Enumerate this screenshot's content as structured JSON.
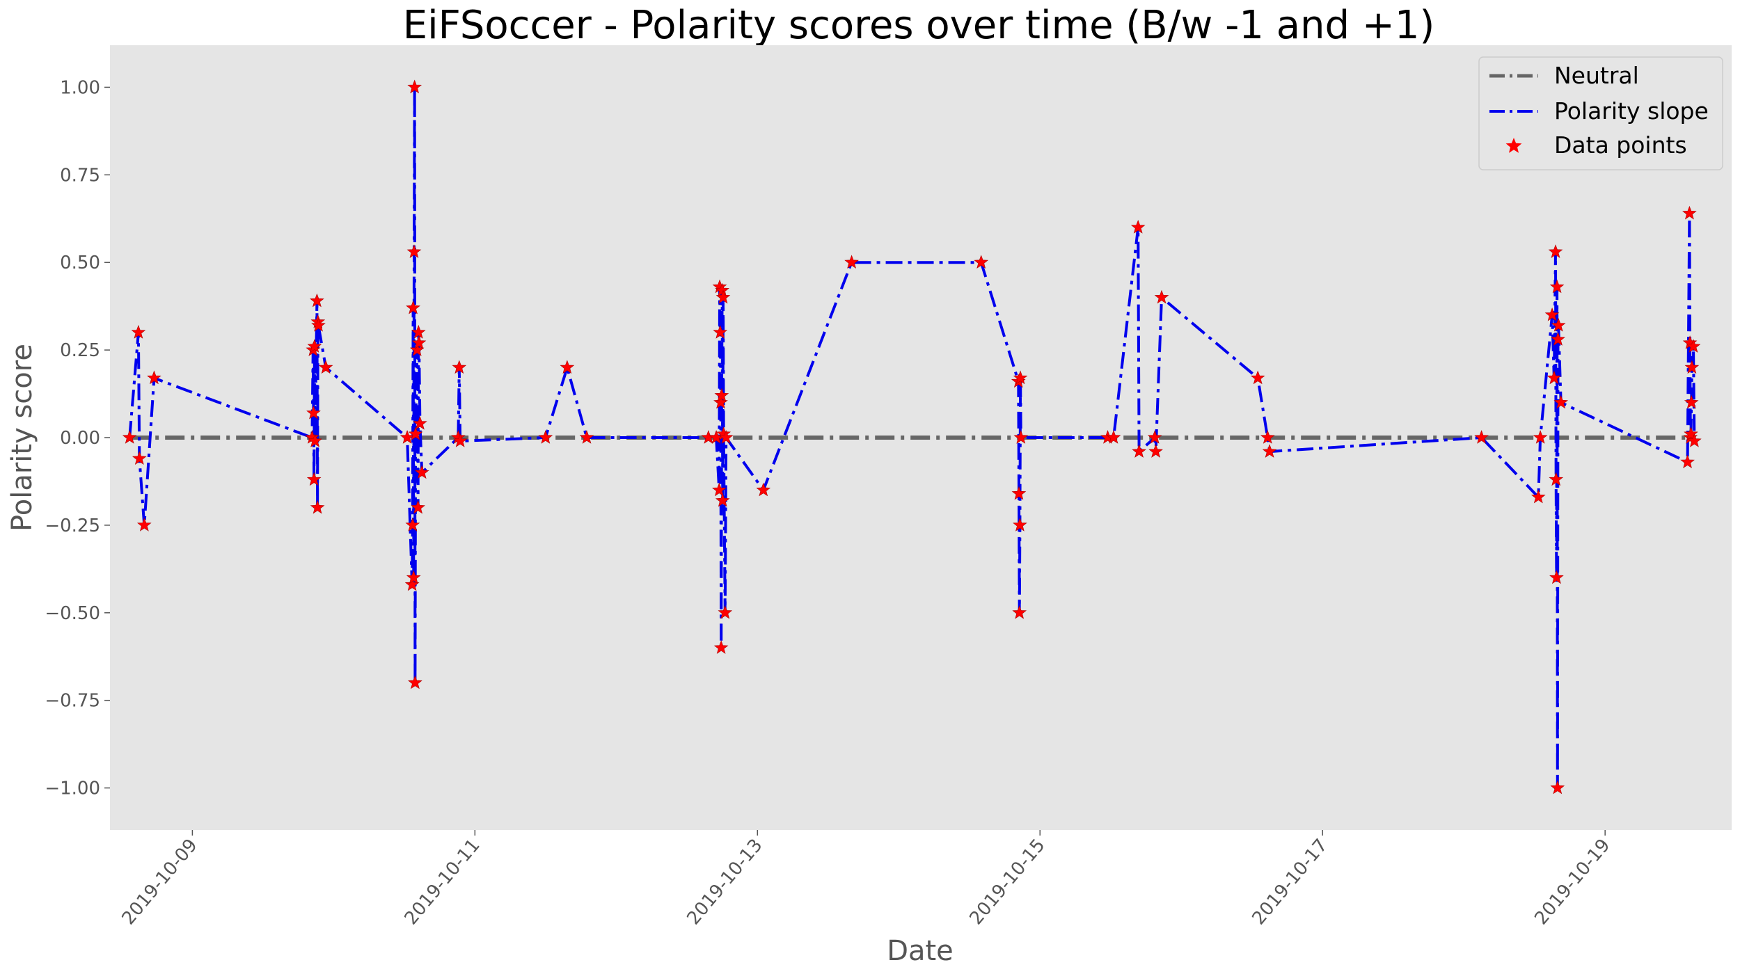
{
  "chart_data": {
    "type": "line",
    "title": "EiFSoccer - Polarity scores over time (B/w -1 and +1)",
    "xlabel": "Date",
    "ylabel": "Polarity score",
    "xlim": [
      "2019-10-08T10:00",
      "2019-10-19T21:30"
    ],
    "ylim": [
      -1.12,
      1.12
    ],
    "x_ticks": [
      "2019-10-09",
      "2019-10-11",
      "2019-10-13",
      "2019-10-15",
      "2019-10-17",
      "2019-10-19"
    ],
    "y_ticks": [
      "1.00",
      "0.75",
      "0.50",
      "0.25",
      "0.00",
      "−0.25",
      "−0.50",
      "−0.75",
      "−1.00"
    ],
    "grid": false,
    "legend_position": "top-right",
    "neutral_value": 0,
    "colors": {
      "background": "#e5e5e5",
      "neutral": "#666666",
      "series": "#0000ee",
      "markers": "#ff0000"
    },
    "series": [
      {
        "name": "Neutral",
        "style": "dash-dot",
        "color": "#666666"
      },
      {
        "name": "Polarity slope",
        "style": "dash-dot",
        "color": "#0000ee"
      },
      {
        "name": "Data points",
        "style": "star",
        "color": "#ff0000"
      }
    ],
    "points": [
      [
        "2019-10-08T13:20",
        0.0
      ],
      [
        "2019-10-08T14:50",
        0.3
      ],
      [
        "2019-10-08T15:00",
        -0.06
      ],
      [
        "2019-10-08T15:50",
        -0.25
      ],
      [
        "2019-10-08T17:30",
        0.17
      ],
      [
        "2019-10-09T20:20",
        0.0
      ],
      [
        "2019-10-09T20:30",
        0.25
      ],
      [
        "2019-10-09T20:35",
        0.07
      ],
      [
        "2019-10-09T20:40",
        -0.12
      ],
      [
        "2019-10-09T20:45",
        0.26
      ],
      [
        "2019-10-09T20:50",
        -0.01
      ],
      [
        "2019-10-09T21:10",
        0.39
      ],
      [
        "2019-10-09T21:15",
        -0.2
      ],
      [
        "2019-10-09T21:20",
        0.33
      ],
      [
        "2019-10-09T21:25",
        0.32
      ],
      [
        "2019-10-09T22:40",
        0.2
      ],
      [
        "2019-10-10T12:30",
        0.0
      ],
      [
        "2019-10-10T13:20",
        -0.42
      ],
      [
        "2019-10-10T13:25",
        -0.25
      ],
      [
        "2019-10-10T13:30",
        0.37
      ],
      [
        "2019-10-10T13:35",
        -0.4
      ],
      [
        "2019-10-10T13:40",
        0.53
      ],
      [
        "2019-10-10T13:45",
        1.0
      ],
      [
        "2019-10-10T13:50",
        -0.7
      ],
      [
        "2019-10-10T13:55",
        0.01
      ],
      [
        "2019-10-10T14:10",
        0.25
      ],
      [
        "2019-10-10T14:20",
        -0.2
      ],
      [
        "2019-10-10T14:25",
        0.3
      ],
      [
        "2019-10-10T14:30",
        0.27
      ],
      [
        "2019-10-10T14:40",
        0.04
      ],
      [
        "2019-10-10T15:00",
        -0.1
      ],
      [
        "2019-10-10T21:10",
        0.0
      ],
      [
        "2019-10-10T21:20",
        0.2
      ],
      [
        "2019-10-10T21:30",
        -0.01
      ],
      [
        "2019-10-11T12:00",
        0.0
      ],
      [
        "2019-10-11T15:40",
        0.2
      ],
      [
        "2019-10-11T19:00",
        0.0
      ],
      [
        "2019-10-12T15:40",
        0.0
      ],
      [
        "2019-10-12T17:00",
        0.0
      ],
      [
        "2019-10-12T17:30",
        -0.15
      ],
      [
        "2019-10-12T17:35",
        0.43
      ],
      [
        "2019-10-12T17:40",
        0.3
      ],
      [
        "2019-10-12T17:45",
        0.1
      ],
      [
        "2019-10-12T17:50",
        -0.6
      ],
      [
        "2019-10-12T17:55",
        0.12
      ],
      [
        "2019-10-12T18:00",
        0.42
      ],
      [
        "2019-10-12T18:05",
        -0.18
      ],
      [
        "2019-10-12T18:10",
        0.4
      ],
      [
        "2019-10-12T18:15",
        0.01
      ],
      [
        "2019-10-12T18:30",
        -0.5
      ],
      [
        "2019-10-12T18:40",
        0.0
      ],
      [
        "2019-10-13T01:00",
        -0.15
      ],
      [
        "2019-10-13T16:00",
        0.5
      ],
      [
        "2019-10-14T14:00",
        0.5
      ],
      [
        "2019-10-14T20:20",
        0.16
      ],
      [
        "2019-10-14T20:25",
        -0.16
      ],
      [
        "2019-10-14T20:30",
        -0.5
      ],
      [
        "2019-10-14T20:35",
        -0.25
      ],
      [
        "2019-10-14T20:40",
        0.17
      ],
      [
        "2019-10-14T20:45",
        0.0
      ],
      [
        "2019-10-15T11:30",
        0.0
      ],
      [
        "2019-10-15T12:30",
        0.0
      ],
      [
        "2019-10-15T16:40",
        0.6
      ],
      [
        "2019-10-15T16:50",
        -0.04
      ],
      [
        "2019-10-15T19:30",
        0.0
      ],
      [
        "2019-10-15T19:40",
        -0.04
      ],
      [
        "2019-10-15T20:40",
        0.4
      ],
      [
        "2019-10-16T13:00",
        0.17
      ],
      [
        "2019-10-16T14:40",
        0.0
      ],
      [
        "2019-10-16T15:00",
        -0.04
      ],
      [
        "2019-10-18T03:00",
        0.0
      ],
      [
        "2019-10-18T12:40",
        -0.17
      ],
      [
        "2019-10-18T13:00",
        0.0
      ],
      [
        "2019-10-18T15:00",
        0.35
      ],
      [
        "2019-10-18T15:20",
        0.17
      ],
      [
        "2019-10-18T15:35",
        0.53
      ],
      [
        "2019-10-18T15:40",
        -0.12
      ],
      [
        "2019-10-18T15:45",
        -0.4
      ],
      [
        "2019-10-18T15:50",
        0.43
      ],
      [
        "2019-10-18T15:55",
        -1.0
      ],
      [
        "2019-10-18T16:00",
        0.28
      ],
      [
        "2019-10-18T16:05",
        0.32
      ],
      [
        "2019-10-18T16:30",
        0.1
      ],
      [
        "2019-10-19T14:00",
        -0.07
      ],
      [
        "2019-10-19T14:20",
        0.64
      ],
      [
        "2019-10-19T14:25",
        0.27
      ],
      [
        "2019-10-19T14:30",
        0.0
      ],
      [
        "2019-10-19T14:35",
        0.01
      ],
      [
        "2019-10-19T14:40",
        0.1
      ],
      [
        "2019-10-19T14:45",
        0.2
      ],
      [
        "2019-10-19T15:00",
        0.26
      ],
      [
        "2019-10-19T15:10",
        -0.01
      ]
    ]
  }
}
